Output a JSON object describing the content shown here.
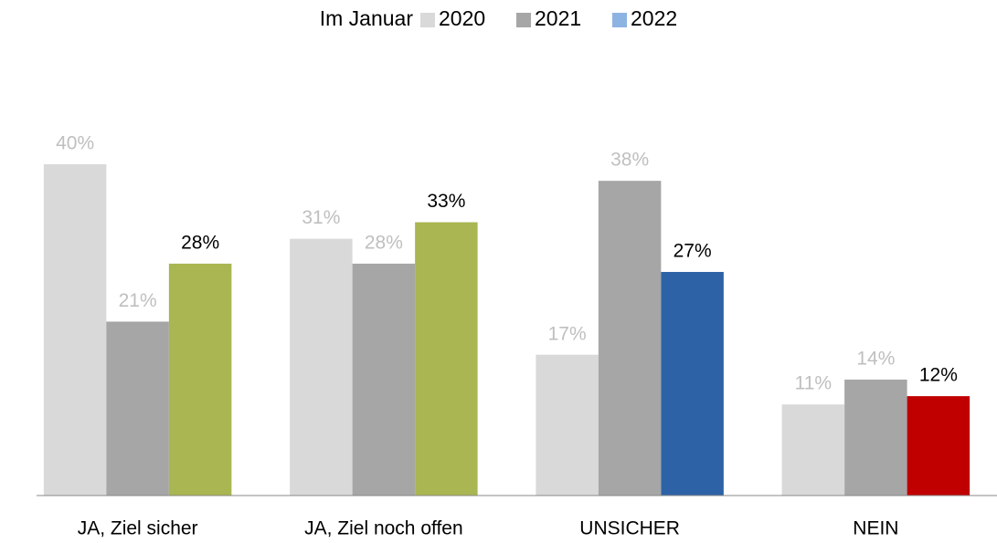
{
  "chart_data": {
    "type": "bar",
    "legend_title": "Im Januar",
    "legend": "top",
    "categories": [
      "JA, Ziel sicher",
      "JA, Ziel noch offen",
      "UNSICHER",
      "NEIN"
    ],
    "series": [
      {
        "name": "2020",
        "color": "#d9d9d9",
        "label_color": "#bfbfbf",
        "values": [
          40,
          31,
          17,
          11
        ],
        "value_labels": [
          "40%",
          "31%",
          "17%",
          "11%"
        ]
      },
      {
        "name": "2021",
        "color": "#a6a6a6",
        "label_color": "#bfbfbf",
        "values": [
          21,
          28,
          38,
          14
        ],
        "value_labels": [
          "21%",
          "28%",
          "38%",
          "14%"
        ]
      },
      {
        "name": "2022",
        "color": "#8db3e2",
        "colors": [
          "#a9b651",
          "#a9b651",
          "#2e62a6",
          "#c00000"
        ],
        "label_color": "#000000",
        "values": [
          28,
          33,
          27,
          12
        ],
        "value_labels": [
          "28%",
          "33%",
          "27%",
          "12%"
        ]
      }
    ]
  }
}
